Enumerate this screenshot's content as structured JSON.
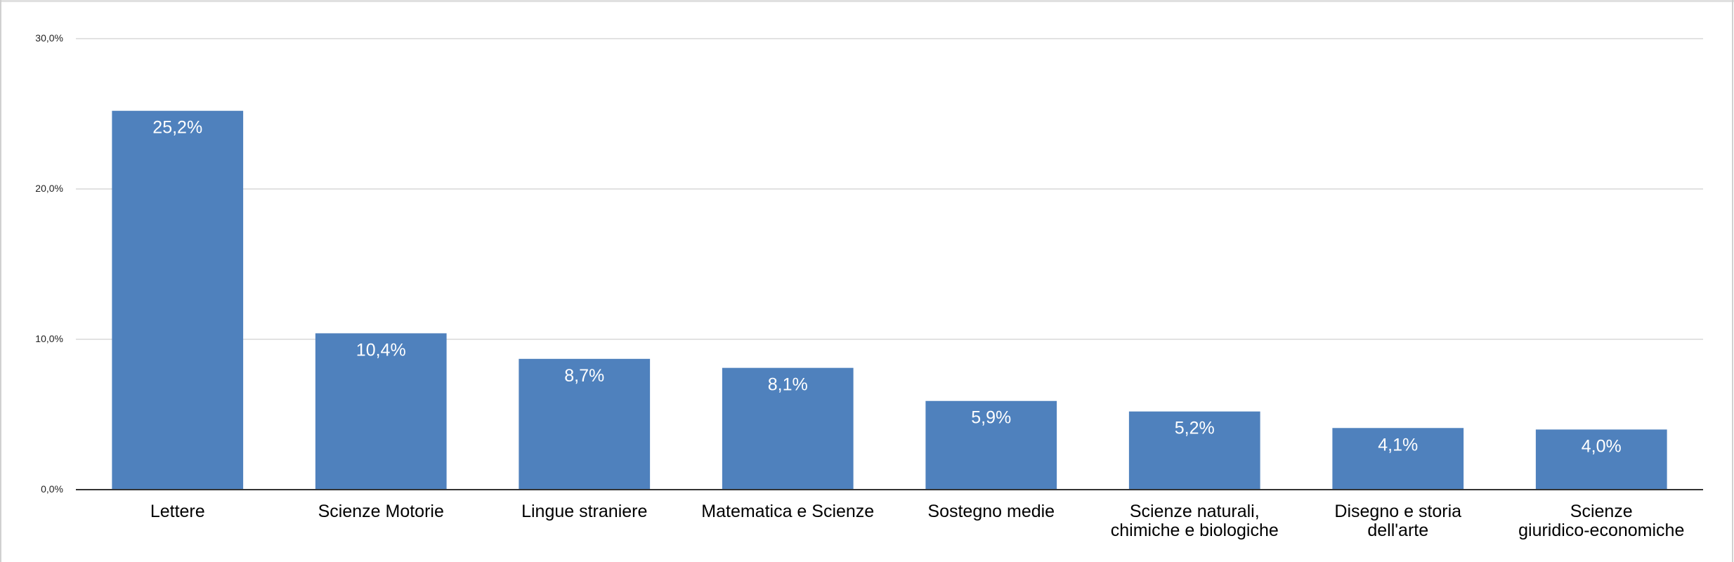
{
  "chart_data": {
    "type": "bar",
    "categories": [
      [
        "Lettere"
      ],
      [
        "Scienze Motorie"
      ],
      [
        "Lingue straniere"
      ],
      [
        "Matematica e Scienze"
      ],
      [
        "Sostegno medie"
      ],
      [
        "Scienze naturali,",
        "chimiche e biologiche"
      ],
      [
        "Disegno e storia",
        "dell'arte"
      ],
      [
        "Scienze",
        "giuridico-economiche"
      ]
    ],
    "values": [
      25.2,
      10.4,
      8.7,
      8.1,
      5.9,
      5.2,
      4.1,
      4.0
    ],
    "data_labels": [
      "25,2%",
      "10,4%",
      "8,7%",
      "8,1%",
      "5,9%",
      "5,2%",
      "4,1%",
      "4,0%"
    ],
    "y_ticks": [
      0,
      10,
      20,
      30
    ],
    "y_tick_labels": [
      "0,0%",
      "10,0%",
      "20,0%",
      "30,0%"
    ],
    "ylim": [
      0,
      30
    ],
    "title": "",
    "xlabel": "",
    "ylabel": "",
    "grid": true,
    "legend": "none",
    "colors": {
      "bar": "#4f81bd",
      "grid": "#d9d9d9",
      "axis": "#333333"
    }
  }
}
